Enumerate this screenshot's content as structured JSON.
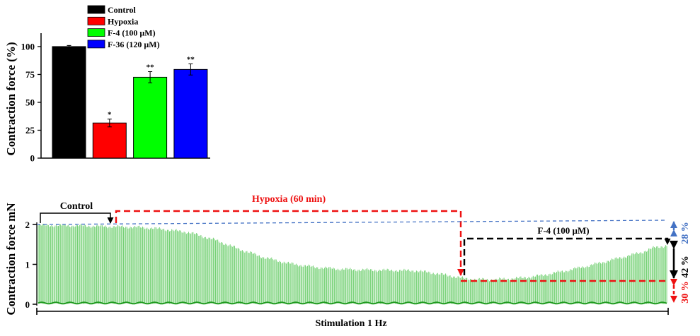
{
  "chart_data": [
    {
      "type": "bar",
      "ylabel": "Contraction force (%)",
      "ylim": [
        0,
        112
      ],
      "yticks": [
        "0",
        "25",
        "50",
        "75",
        "100"
      ],
      "legend_position": "top",
      "categories": [
        "Control",
        "Hypoxia",
        "F-4 (100 µM)",
        "F-36 (120 µM)"
      ],
      "values": [
        100,
        31.5,
        72.5,
        79.5
      ],
      "errors": [
        1,
        3.5,
        5,
        5
      ],
      "colors": [
        "#000000",
        "#ff0000",
        "#00ff00",
        "#0000ff"
      ],
      "significance": [
        "",
        "*",
        "**",
        "**"
      ]
    },
    {
      "type": "line",
      "ylabel": "Contraction force mN",
      "xlabel": "Stimulation 1 Hz",
      "ylim": [
        0,
        2
      ],
      "yticks": [
        "0",
        "1",
        "2"
      ],
      "trace_color": "#33bb33",
      "envelope": {
        "t": [
          0,
          0.06,
          0.11,
          0.16,
          0.2,
          0.24,
          0.28,
          0.32,
          0.36,
          0.4,
          0.44,
          0.48,
          0.52,
          0.56,
          0.6,
          0.63,
          0.66,
          0.68,
          0.7,
          0.73,
          0.77,
          0.8,
          0.84,
          0.88,
          0.92,
          0.96,
          0.98,
          1.0
        ],
        "peak_mN": [
          1.98,
          1.97,
          1.95,
          1.93,
          1.88,
          1.8,
          1.62,
          1.38,
          1.17,
          1.02,
          0.93,
          0.88,
          0.86,
          0.85,
          0.84,
          0.78,
          0.7,
          0.64,
          0.62,
          0.62,
          0.66,
          0.72,
          0.84,
          0.98,
          1.14,
          1.3,
          1.42,
          1.47
        ]
      },
      "annotations": {
        "control": "Control",
        "hypoxia": "Hypoxia  (60 min)",
        "f4": "F-4 (100 µM)",
        "pct_blue": "28 %",
        "pct_black": "42 %",
        "pct_red": "30 %"
      },
      "annotation_colors": {
        "hypoxia": "#ee1111",
        "blue": "#4472c4",
        "black": "#000000",
        "red": "#ee1111"
      }
    }
  ]
}
